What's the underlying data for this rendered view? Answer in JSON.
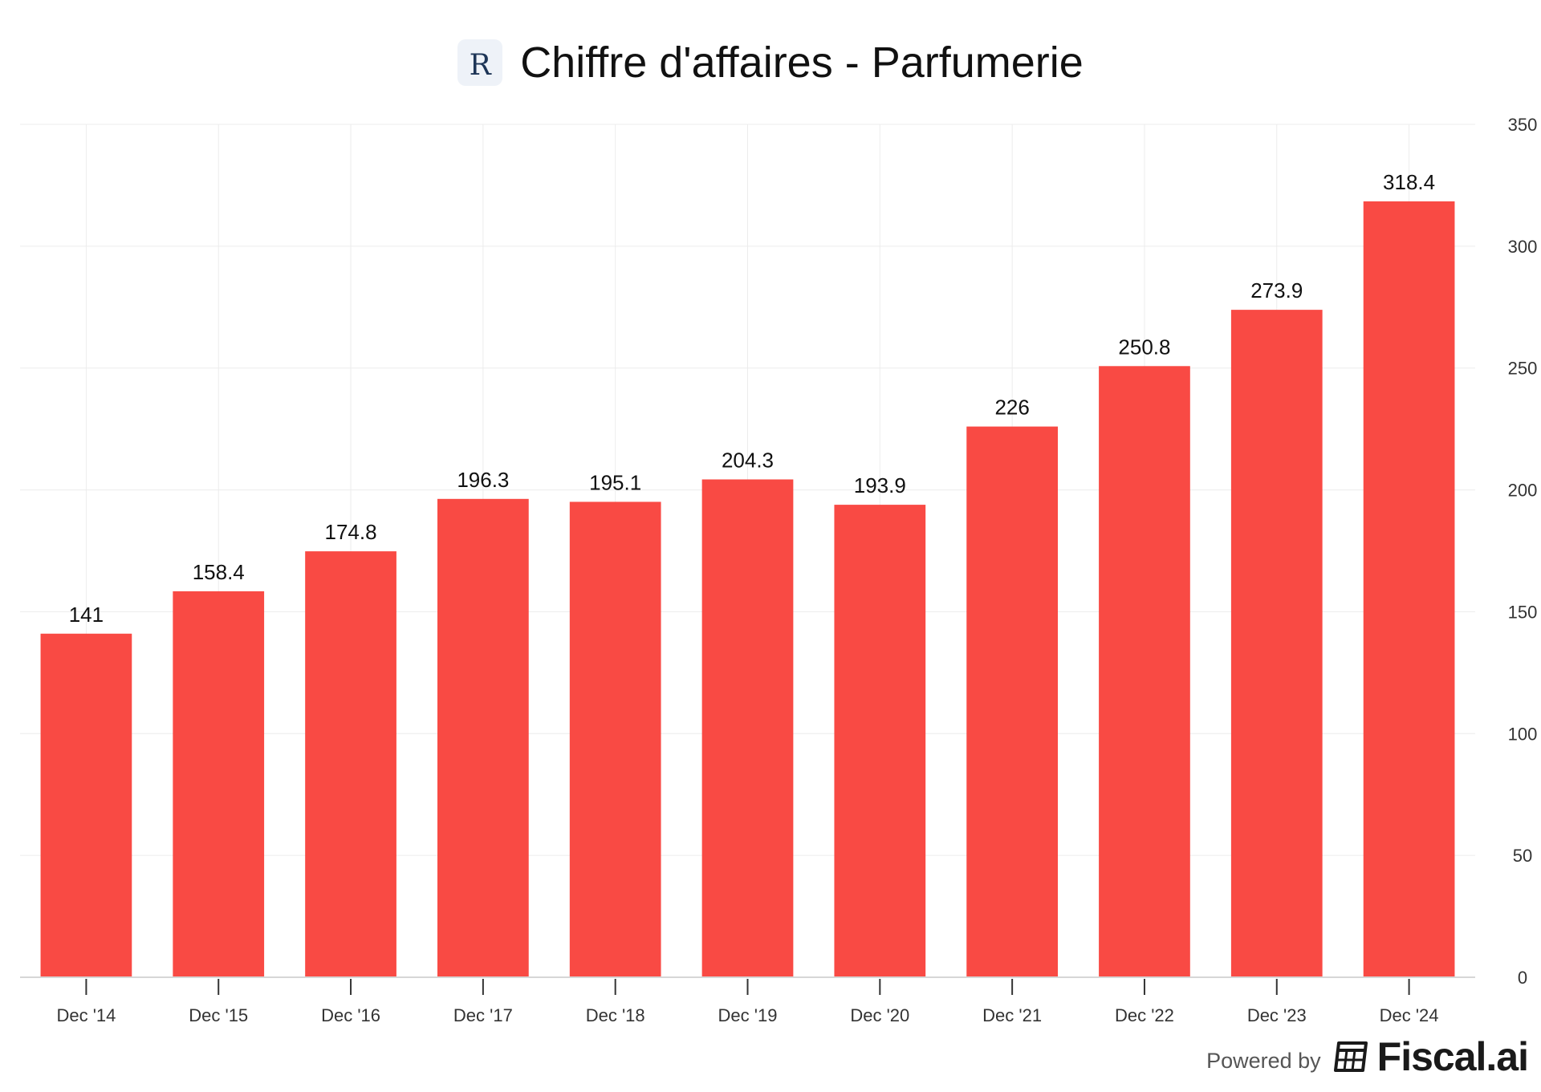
{
  "header": {
    "logo_letter": "R",
    "title": "Chiffre d'affaires - Parfumerie"
  },
  "footer": {
    "powered_by": "Powered by",
    "brand": "Fiscal.ai"
  },
  "colors": {
    "bar": "#f94a44",
    "grid": "#ececec",
    "axis": "#d6d6d6",
    "text": "#333333",
    "label": "#111111"
  },
  "chart_data": {
    "type": "bar",
    "title": "Chiffre d'affaires - Parfumerie",
    "categories": [
      "Dec '14",
      "Dec '15",
      "Dec '16",
      "Dec '17",
      "Dec '18",
      "Dec '19",
      "Dec '20",
      "Dec '21",
      "Dec '22",
      "Dec '23",
      "Dec '24"
    ],
    "values": [
      141,
      158.4,
      174.8,
      196.3,
      195.1,
      204.3,
      193.9,
      226,
      250.8,
      273.9,
      318.4
    ],
    "data_labels": [
      "141",
      "158.4",
      "174.8",
      "196.3",
      "195.1",
      "204.3",
      "193.9",
      "226",
      "250.8",
      "273.9",
      "318.4"
    ],
    "yticks": [
      0,
      50,
      100,
      150,
      200,
      250,
      300,
      350
    ],
    "ylim": [
      0,
      350
    ],
    "y_axis_side": "right",
    "grid": true,
    "xlabel": "",
    "ylabel": ""
  }
}
